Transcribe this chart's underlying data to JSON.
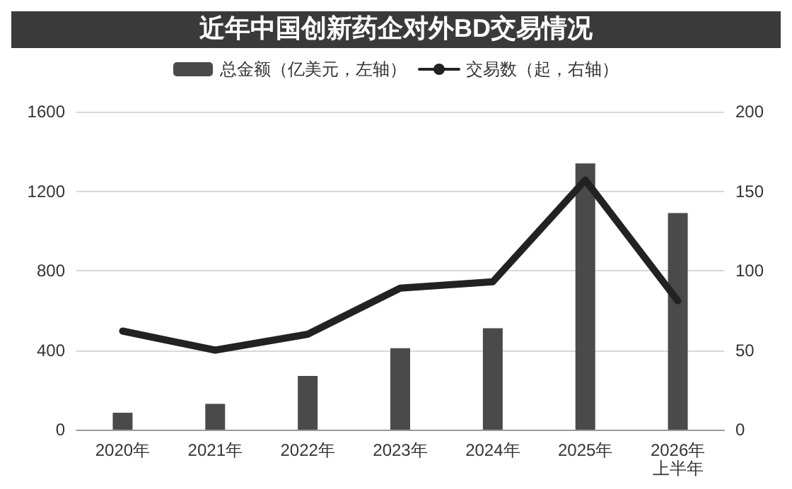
{
  "chart_data": {
    "type": "bar",
    "title": "近年中国创新药企对外BD交易情况",
    "categories": [
      "2020年",
      "2021年",
      "2022年",
      "2023年",
      "2024年",
      "2025年",
      "2026年上半年"
    ],
    "series": [
      {
        "name": "总金额（亿美元，左轴）",
        "color": "#4a4a4a",
        "values": [
          85,
          130,
          270,
          410,
          510,
          1340,
          1090
        ]
      },
      {
        "name": "交易数（起，右轴）",
        "type": "line",
        "axis": "y2",
        "color": "#222222",
        "values": [
          62,
          50,
          60,
          89,
          93,
          157,
          81
        ]
      }
    ],
    "ylim": [
      0,
      1600
    ],
    "yticks": [
      0,
      400,
      800,
      1200,
      1600
    ],
    "y2lim": [
      0,
      200
    ],
    "y2ticks": [
      0,
      50,
      100,
      150,
      200
    ],
    "grid": "y",
    "legend": "top",
    "marker": "none"
  }
}
